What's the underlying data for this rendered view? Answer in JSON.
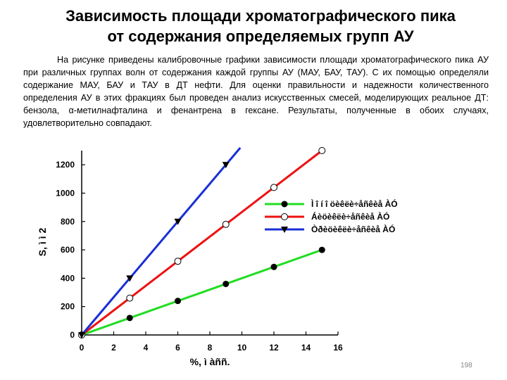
{
  "slide": {
    "title": "Зависимость площади хроматографического пика\nот содержания определяемых групп АУ",
    "paragraph": "На рисунке приведены калибровочные графики зависимости площади хроматографического пика АУ при различных группах волн от содержания каждой группы АУ (МАУ, БАУ, ТАУ). С их помощью определяли содержание МАУ, БАУ и ТАУ в ДТ нефти. Для оценки правильности и надежности количественного определения АУ в этих фракциях был проведен анализ искусственных смесей, моделирующих реальное ДТ: бензола, α-метилнафталина и фенантрена в гексане. Результаты, полученные в обоих случаях, удовлетворительно совпадают.",
    "page_number": "198"
  },
  "chart_data": {
    "type": "line",
    "title": "",
    "xlabel": "%, ì àññ.",
    "ylabel": "S, ì ì 2",
    "xlim": [
      0,
      16
    ],
    "ylim": [
      0,
      1300
    ],
    "xticks": [
      0,
      2,
      4,
      6,
      8,
      10,
      12,
      14,
      16
    ],
    "yticks": [
      0,
      200,
      400,
      600,
      800,
      1000,
      1200
    ],
    "grid": false,
    "legend_position": "right",
    "series": [
      {
        "name": "Ì î í î öèêëè÷åñêèå ÀÓ",
        "line_color": "#22dd22",
        "marker": "filled-circle",
        "marker_color": "#000000",
        "x": [
          0,
          3,
          6,
          9,
          12,
          15
        ],
        "y": [
          0,
          120,
          240,
          360,
          480,
          600
        ],
        "fit_line": [
          [
            0,
            0
          ],
          [
            15,
            600
          ]
        ]
      },
      {
        "name": "Áèöèêëè÷åñêèå ÀÓ",
        "line_color": "#ee1111",
        "marker": "open-circle",
        "marker_color": "#000000",
        "x": [
          0,
          3,
          6,
          9,
          12,
          15
        ],
        "y": [
          0,
          260,
          520,
          780,
          1040,
          1300
        ],
        "fit_line": [
          [
            0,
            0
          ],
          [
            15,
            1300
          ]
        ]
      },
      {
        "name": "Òðèöèêëè÷åñêèå ÀÓ",
        "line_color": "#1a2fd6",
        "marker": "filled-triangle-down",
        "marker_color": "#000000",
        "x": [
          0,
          3,
          6,
          9
        ],
        "y": [
          0,
          400,
          800,
          1200
        ],
        "fit_line": [
          [
            0,
            0
          ],
          [
            9.9,
            1320
          ]
        ]
      }
    ]
  }
}
